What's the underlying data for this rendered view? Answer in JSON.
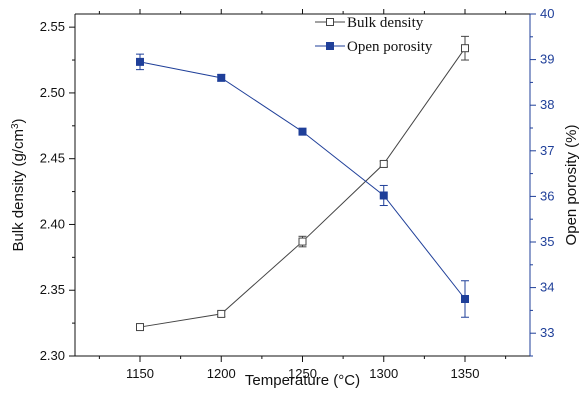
{
  "chart_data": {
    "type": "line",
    "x": [
      1150,
      1200,
      1250,
      1300,
      1350
    ],
    "xlabel": "Temperature (°C)",
    "xlim": [
      1110,
      1390
    ],
    "xticks": [
      "1150",
      "1200",
      "1250",
      "1300",
      "1350"
    ],
    "series": [
      {
        "name": "Bulk density",
        "axis": "left",
        "marker": "hollow-square",
        "color": "#444444",
        "values": [
          2.322,
          2.332,
          2.387,
          2.446,
          2.534
        ],
        "errors": [
          0.002,
          0.002,
          0.004,
          0.002,
          0.009
        ]
      },
      {
        "name": "Open porosity",
        "axis": "right",
        "marker": "filled-square",
        "color": "#1f3f99",
        "values": [
          38.95,
          38.6,
          37.42,
          36.02,
          33.75
        ],
        "errors": [
          0.17,
          0.07,
          0.05,
          0.22,
          0.4
        ]
      }
    ],
    "y_left": {
      "label_main": "Bulk density (g/cm",
      "label_sup": "3",
      "label_end": ")",
      "ylim": [
        2.3,
        2.56
      ],
      "ticks": [
        "2.30",
        "2.35",
        "2.40",
        "2.45",
        "2.50",
        "2.55"
      ]
    },
    "y_right": {
      "label": "Open porosity (%)",
      "ylim": [
        32.5,
        40
      ],
      "ticks": [
        "33",
        "34",
        "35",
        "36",
        "37",
        "38",
        "39",
        "40"
      ],
      "color": "#1f3f99"
    },
    "legend_position": "top-center",
    "grid": false
  }
}
